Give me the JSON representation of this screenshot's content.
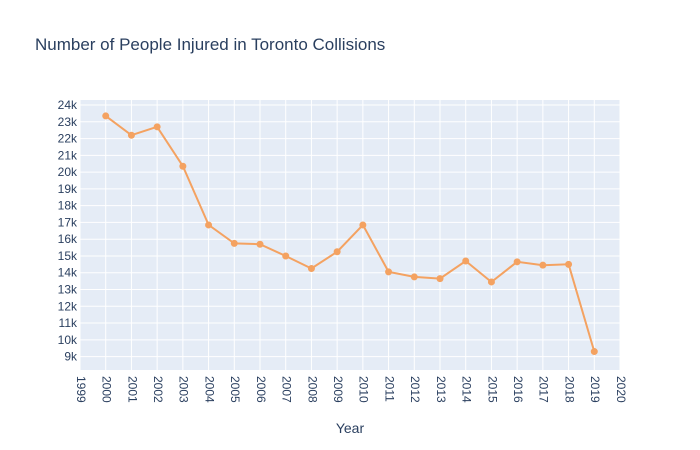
{
  "chart_data": {
    "type": "line",
    "title": "Number of People Injured in Toronto Collisions",
    "xlabel": "Year",
    "ylabel": "",
    "xlim": [
      1999,
      2020
    ],
    "ylim": [
      8200,
      24300
    ],
    "grid": true,
    "x_ticks": [
      "1999",
      "2000",
      "2001",
      "2002",
      "2003",
      "2004",
      "2005",
      "2006",
      "2007",
      "2008",
      "2009",
      "2010",
      "2011",
      "2012",
      "2013",
      "2014",
      "2015",
      "2016",
      "2017",
      "2018",
      "2019",
      "2020"
    ],
    "y_ticks": [
      "9k",
      "10k",
      "11k",
      "12k",
      "13k",
      "14k",
      "15k",
      "16k",
      "17k",
      "18k",
      "19k",
      "20k",
      "21k",
      "22k",
      "23k",
      "24k"
    ],
    "y_tick_values": [
      9000,
      10000,
      11000,
      12000,
      13000,
      14000,
      15000,
      16000,
      17000,
      18000,
      19000,
      20000,
      21000,
      22000,
      23000,
      24000
    ],
    "series": [
      {
        "color": "#f4a261",
        "x": [
          2000,
          2001,
          2002,
          2003,
          2004,
          2005,
          2006,
          2007,
          2008,
          2009,
          2010,
          2011,
          2012,
          2013,
          2014,
          2015,
          2016,
          2017,
          2018,
          2019
        ],
        "values": [
          23350,
          22200,
          22700,
          20350,
          16850,
          15750,
          15700,
          15000,
          14250,
          15250,
          16850,
          14050,
          13750,
          13650,
          14700,
          13450,
          14650,
          14450,
          14500,
          9300
        ]
      }
    ]
  },
  "colors": {
    "plot_bg": "#e5ecf6",
    "grid": "#ffffff",
    "text": "#2a3f5f",
    "line": "#f4a261"
  }
}
